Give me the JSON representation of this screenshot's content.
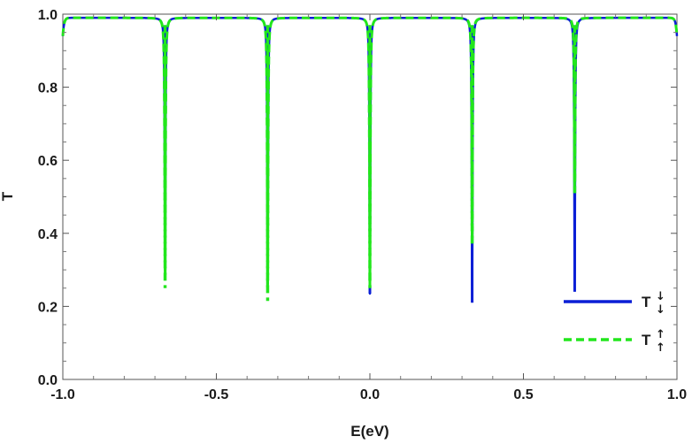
{
  "chart_data": {
    "type": "line",
    "xlabel": "E(eV)",
    "ylabel": "T",
    "xlim": [
      -1.0,
      1.0
    ],
    "ylim": [
      0.0,
      1.0
    ],
    "xticks": [
      "-1.0",
      "-0.5",
      "0.0",
      "0.5",
      "1.0"
    ],
    "yticks": [
      "0.0",
      "0.2",
      "0.4",
      "0.6",
      "0.8",
      "1.0"
    ],
    "xtick_values": [
      -1.0,
      -0.5,
      0.0,
      0.5,
      1.0
    ],
    "ytick_values": [
      0.0,
      0.2,
      0.4,
      0.6,
      0.8,
      1.0
    ],
    "grid": false,
    "legend_position": "bottom-right",
    "baseline": 0.99,
    "series": [
      {
        "name": "T↓↓",
        "label_main": "T",
        "label_arrows": [
          "↓",
          "↓"
        ],
        "color": "#0a1fd6",
        "style": "solid",
        "dips": [
          {
            "x": -0.667,
            "y": 0.3
          },
          {
            "x": -0.333,
            "y": 0.26
          },
          {
            "x": 0.0,
            "y": 0.235
          },
          {
            "x": 0.333,
            "y": 0.21
          },
          {
            "x": 0.667,
            "y": 0.24
          }
        ]
      },
      {
        "name": "T↑↑",
        "label_main": "T",
        "label_arrows": [
          "↑",
          "↑"
        ],
        "color": "#22e61c",
        "style": "dashed",
        "dips": [
          {
            "x": -0.667,
            "y": 0.25
          },
          {
            "x": -0.333,
            "y": 0.215
          },
          {
            "x": 0.0,
            "y": 0.25
          },
          {
            "x": 0.333,
            "y": 0.36
          },
          {
            "x": 0.667,
            "y": 0.51
          }
        ]
      }
    ]
  }
}
